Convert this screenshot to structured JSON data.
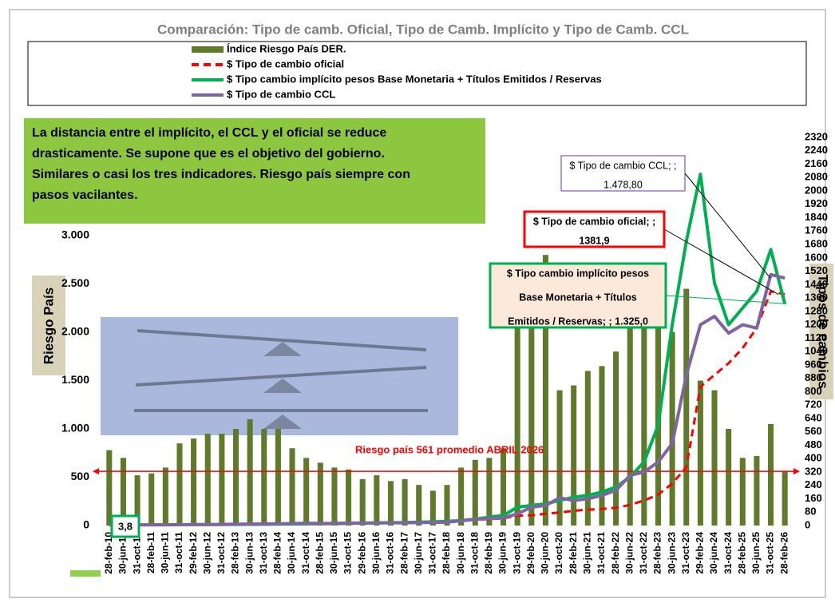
{
  "chart_data": {
    "type": "bar",
    "title": "Comparación: Tipo de camb. Oficial, Tipo de Camb. Implícito y Tipo de Camb. CCL",
    "ylabel": "Riesgo País",
    "y2label": "Tipos de cambios",
    "categories": [
      "28-feb-10",
      "30-jun-10",
      "31-oct-10",
      "28-feb-11",
      "30-jun-11",
      "31-oct-11",
      "29-feb-12",
      "30-jun-12",
      "31-oct-12",
      "28-feb-13",
      "30-jun-13",
      "31-oct-13",
      "28-feb-14",
      "30-jun-14",
      "31-oct-14",
      "28-feb-15",
      "30-jun-15",
      "31-oct-15",
      "29-feb-16",
      "30-jun-16",
      "31-oct-16",
      "28-feb-17",
      "30-jun-17",
      "31-oct-17",
      "28-feb-18",
      "30-jun-18",
      "31-oct-18",
      "28-feb-19",
      "30-jun-19",
      "31-oct-19",
      "29-feb-20",
      "30-jun-20",
      "31-oct-20",
      "28-feb-21",
      "30-jun-21",
      "31-oct-21",
      "28-feb-22",
      "30-jun-22",
      "31-oct-22",
      "28-feb-23",
      "30-jun-23",
      "31-oct-23",
      "29-feb-24",
      "30-jun-24",
      "31-oct-24",
      "28-feb-25",
      "30-jun-25",
      "31-oct-25",
      "28-feb-26"
    ],
    "series": [
      {
        "name": "Índice Riesgo País DER.",
        "type": "bar",
        "color": "#5f7a2a",
        "values": [
          780,
          700,
          520,
          540,
          600,
          850,
          900,
          950,
          950,
          1000,
          1100,
          1000,
          1000,
          800,
          700,
          650,
          600,
          580,
          480,
          520,
          460,
          480,
          420,
          360,
          420,
          600,
          680,
          700,
          800,
          2100,
          2200,
          2800,
          1400,
          1450,
          1600,
          1650,
          1800,
          2400,
          2300,
          2100,
          2000,
          2450,
          1500,
          1400,
          1000,
          700,
          720,
          1050,
          560
        ]
      },
      {
        "name": "$ Tipo de cambio oficial",
        "type": "line",
        "axis": "y2",
        "color": "#ff0000",
        "dash": true,
        "values": [
          3.8,
          3.9,
          4,
          4.1,
          4.2,
          4.3,
          4.4,
          4.5,
          4.7,
          5,
          5.4,
          5.9,
          7.9,
          8.1,
          8.5,
          8.6,
          9,
          9.5,
          14.5,
          14.9,
          15.2,
          15.5,
          17,
          17.5,
          19.5,
          27,
          36,
          38,
          43,
          59,
          61,
          70,
          78,
          88,
          95,
          99,
          106,
          123,
          150,
          185,
          250,
          350,
          830,
          900,
          970,
          1060,
          1180,
          1400,
          1381.9
        ]
      },
      {
        "name": "$ Tipo cambio implícito pesos Base Monetaria + Títulos Emitidos / Reservas",
        "type": "line",
        "axis": "y2",
        "color": "#00b050",
        "values": [
          3.8,
          4,
          4.2,
          4.4,
          4.7,
          5,
          5.3,
          5.7,
          6,
          6.5,
          7,
          7.5,
          8,
          9,
          10,
          11,
          12,
          13,
          15,
          16,
          17,
          18,
          20,
          22,
          25,
          30,
          38,
          50,
          60,
          110,
          120,
          130,
          150,
          170,
          180,
          200,
          230,
          290,
          380,
          600,
          1200,
          1700,
          2100,
          1450,
          1200,
          1300,
          1400,
          1650,
          1325
        ]
      },
      {
        "name": "$ Tipo de cambio CCL",
        "type": "line",
        "axis": "y2",
        "color": "#8064a2",
        "values": [
          4,
          4,
          4.1,
          4.2,
          4.4,
          4.8,
          5.5,
          6,
          6.5,
          8,
          9,
          9.5,
          11,
          12,
          14,
          12.5,
          13,
          15,
          15,
          15,
          16,
          16,
          17.5,
          18,
          20,
          28,
          37,
          43,
          45,
          70,
          110,
          120,
          165,
          150,
          160,
          180,
          210,
          300,
          320,
          380,
          490,
          900,
          1200,
          1250,
          1150,
          1200,
          1180,
          1500,
          1478.8
        ]
      }
    ],
    "ylim": [
      0,
      3000
    ],
    "yticks": [
      0,
      500,
      {
        "value": 1000,
        "label": "1.000"
      },
      {
        "value": 1500,
        "label": "1.500"
      },
      {
        "value": 2000,
        "label": "2.000"
      },
      {
        "value": 2500,
        "label": "2.500"
      },
      {
        "value": 3000,
        "label": "3.000"
      }
    ],
    "y2lim": [
      0,
      2320
    ],
    "y2ticks": [
      0,
      80,
      160,
      240,
      320,
      400,
      480,
      560,
      640,
      720,
      800,
      880,
      960,
      1040,
      1120,
      1200,
      1280,
      1360,
      1440,
      1520,
      1600,
      1680,
      1760,
      1840,
      1920,
      2000,
      2080,
      2160,
      2240,
      2320
    ],
    "reference_line": {
      "value": 561,
      "label": "Riesgo país 561 promedio  ABRIL 2026"
    },
    "note": [
      "La distancia entre el implícito, el CCL y el oficial se reduce",
      "drasticamente. Se supone que es el objetivo del gobierno.",
      "Similares o casi los tres indicadores. Riesgo país siempre con",
      "pasos vacilantes."
    ],
    "callouts": [
      {
        "lines": [
          "$ Tipo de cambio CCL; ;",
          "1.478,80"
        ]
      },
      {
        "lines": [
          "$ Tipo de cambio oficial; ;",
          "1381,9"
        ]
      },
      {
        "lines": [
          "$ Tipo cambio implícito pesos",
          "Base Monetaria + Títulos",
          "Emitidos / Reservas; ;  1.325,0"
        ]
      }
    ],
    "first_label": "3,8"
  }
}
